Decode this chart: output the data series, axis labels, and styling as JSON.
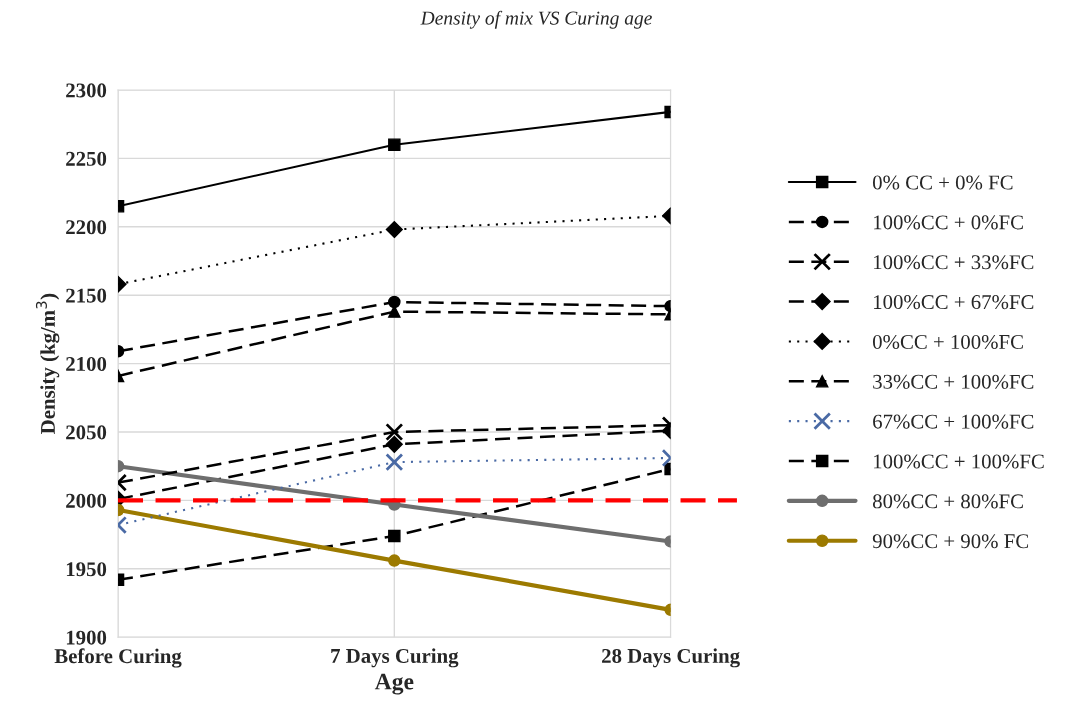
{
  "chart_data": {
    "type": "line",
    "title": "Density of mix VS Curing age",
    "xlabel": "Age",
    "ylabel": "Density (kg/m$^{3}$)",
    "categories": [
      "Before Curing",
      "7 Days Curing",
      "28 Days Curing"
    ],
    "series": [
      {
        "name": "0% CC + 0% FC",
        "color": "#000000",
        "marker": "square",
        "line_style": "solid",
        "values": [
          2215,
          2260,
          2284
        ]
      },
      {
        "name": "100%CC + 0%FC",
        "color": "#000000",
        "marker": "circle",
        "line_style": "dashed",
        "values": [
          2109,
          2145,
          2142
        ]
      },
      {
        "name": "100%CC + 33%FC",
        "color": "#000000",
        "marker": "cross",
        "line_style": "dashed",
        "values": [
          2013,
          2050,
          2055
        ]
      },
      {
        "name": "100%CC + 67%FC",
        "color": "#000000",
        "marker": "diamond",
        "line_style": "dashed",
        "values": [
          2001,
          2041,
          2051
        ]
      },
      {
        "name": "0%CC + 100%FC",
        "color": "#000000",
        "marker": "diamond",
        "line_style": "dotted",
        "values": [
          2158,
          2198,
          2208
        ]
      },
      {
        "name": "33%CC + 100%FC",
        "color": "#000000",
        "marker": "triangle",
        "line_style": "dashed",
        "values": [
          2091,
          2138,
          2136
        ]
      },
      {
        "name": "67%CC + 100%FC",
        "color": "#4a6aa5",
        "marker": "cross",
        "line_style": "dotted",
        "values": [
          1982,
          2028,
          2031
        ]
      },
      {
        "name": "100%CC + 100%FC",
        "color": "#000000",
        "marker": "square",
        "line_style": "dashed",
        "values": [
          1942,
          1974,
          2023
        ]
      },
      {
        "name": "80%CC + 80%FC",
        "color": "#6e6e6e",
        "marker": "circle",
        "line_style": "solid",
        "values": [
          2025,
          1997,
          1970
        ]
      },
      {
        "name": "90%CC + 90% FC",
        "color": "#9c7a00",
        "marker": "circle",
        "line_style": "solid",
        "values": [
          1993,
          1956,
          1920
        ]
      }
    ],
    "ylim": [
      1900,
      2300
    ],
    "yticks": [
      1900,
      1950,
      2000,
      2050,
      2100,
      2150,
      2200,
      2250,
      2300
    ],
    "ref_lines": [
      {
        "axis": "y",
        "value": 2000,
        "color": "#ff0000",
        "line_style": "dashed"
      }
    ],
    "grid": true,
    "legend": "right"
  }
}
